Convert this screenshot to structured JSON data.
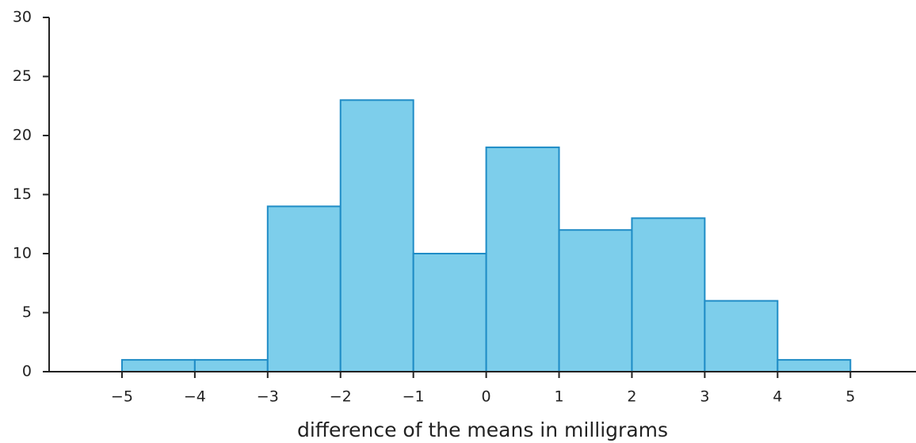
{
  "chart_data": {
    "type": "histogram",
    "xlabel": "difference of the means in milligrams",
    "bins": [
      -5,
      -4,
      -3,
      -2,
      -1,
      0,
      1,
      2,
      3,
      4,
      5
    ],
    "counts": [
      1,
      1,
      14,
      23,
      10,
      19,
      12,
      13,
      6,
      1
    ],
    "color": "#7dceeb",
    "edgecolor": "#1f8cc6",
    "xlim": [
      -6,
      5.9
    ],
    "xticks": [
      {
        "value": -5,
        "label": "−5"
      },
      {
        "value": -4,
        "label": "−4"
      },
      {
        "value": -3,
        "label": "−3"
      },
      {
        "value": -2,
        "label": "−2"
      },
      {
        "value": -1,
        "label": "−1"
      },
      0,
      1,
      2,
      3,
      4,
      5
    ],
    "ylim": [
      0,
      30
    ],
    "yticks": [
      0,
      5,
      10,
      15,
      20,
      25,
      30
    ],
    "grid": false
  }
}
